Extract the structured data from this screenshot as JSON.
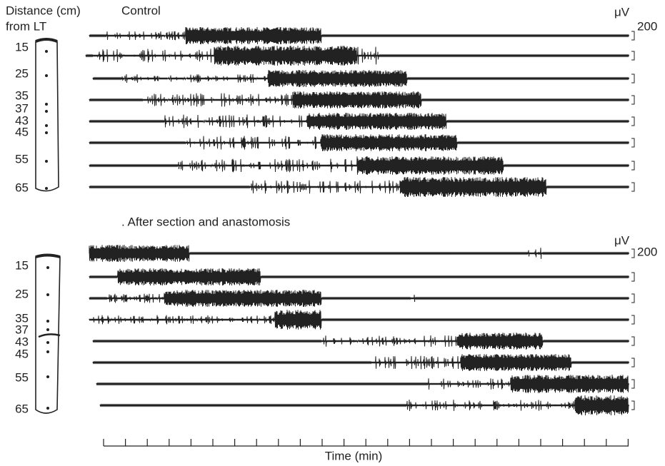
{
  "figure": {
    "distance_label": "Distance (cm)",
    "from_label": "from LT",
    "control_label": "Control",
    "after_label": ". After section and anastomosis",
    "unit": "μV",
    "calibration": "200",
    "distances": [
      "15",
      "25",
      "35",
      "37",
      "43",
      "45",
      "55",
      "65"
    ],
    "time_label": "Time (min)"
  }
}
